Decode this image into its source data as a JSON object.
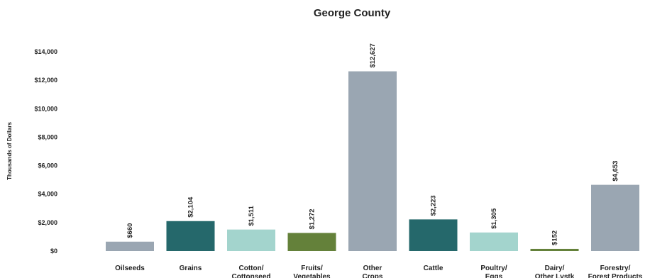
{
  "chart_data": {
    "type": "bar",
    "title": "George County",
    "xlabel": "",
    "ylabel": "Thousands of Dollars",
    "ylim": [
      0,
      14000
    ],
    "yticks": [
      0,
      2000,
      4000,
      6000,
      8000,
      10000,
      12000,
      14000
    ],
    "ytick_labels": [
      "$0",
      "$2,000",
      "$4,000",
      "$6,000",
      "$8,000",
      "$10,000",
      "$12,000",
      "$14,000"
    ],
    "grid": false,
    "legend": "none",
    "categories": [
      "Oilseeds",
      "Grains",
      "Cotton/\nCottonseed",
      "Fruits/\nVegetables",
      "Other\nCrops",
      "Cattle",
      "Poultry/\nEggs",
      "Dairy/\nOther Lvstk",
      "Forestry/\nForest Products"
    ],
    "values": [
      660,
      2104,
      1511,
      1272,
      12627,
      2223,
      1305,
      152,
      4653
    ],
    "data_labels": [
      "$660",
      "$2,104",
      "$1,511",
      "$1,272",
      "$12,627",
      "$2,223",
      "$1,305",
      "$152",
      "$4,653"
    ],
    "colors": [
      "#9aa6b2",
      "#25686b",
      "#a3d4cd",
      "#64813a",
      "#9aa6b2",
      "#25686b",
      "#a3d4cd",
      "#64813a",
      "#9aa6b2"
    ]
  }
}
